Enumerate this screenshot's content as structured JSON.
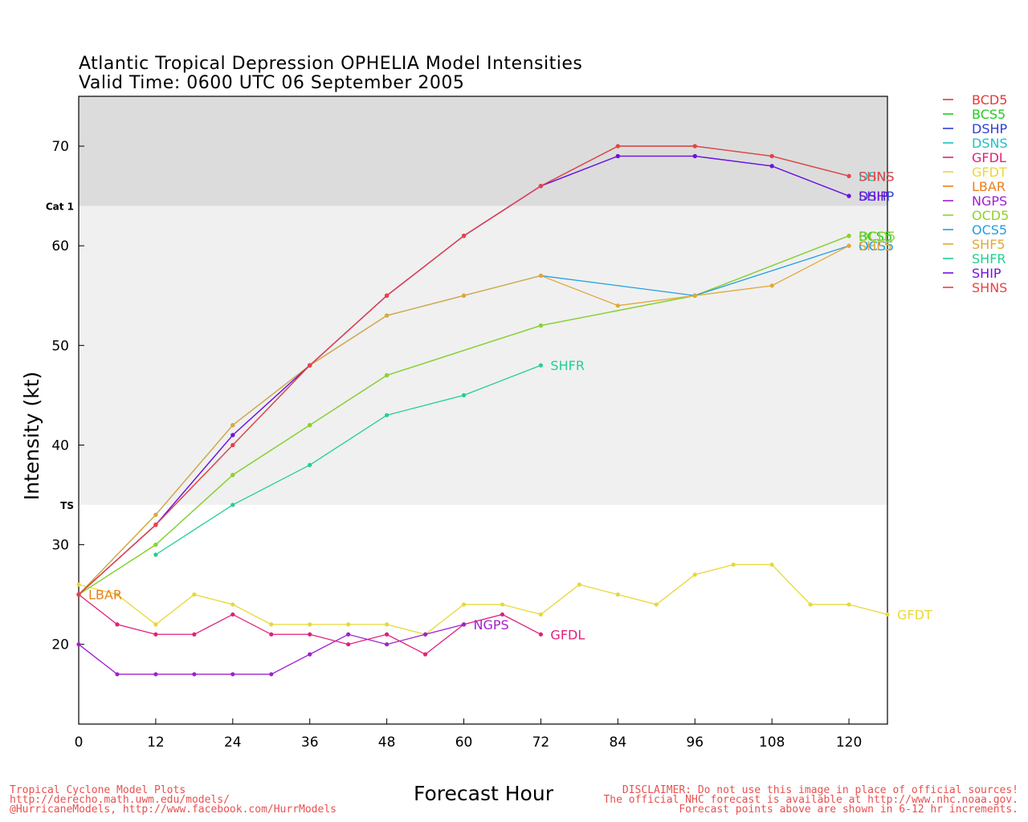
{
  "chart_data": {
    "type": "line",
    "title": "Atlantic Tropical Depression OPHELIA Model Intensities",
    "subtitle": "Valid Time: 0600 UTC 06 September 2005",
    "xlabel": "Forecast Hour",
    "ylabel": "Intensity (kt)",
    "xlim": [
      0,
      126
    ],
    "ylim": [
      12,
      75
    ],
    "xticks": [
      0,
      12,
      24,
      36,
      48,
      60,
      72,
      84,
      96,
      108,
      120
    ],
    "yticks": [
      20,
      30,
      40,
      50,
      60,
      70
    ],
    "bands": [
      {
        "label": "",
        "from": 64,
        "to": 75,
        "color": "#dcdcdc"
      },
      {
        "label": "Cat 1",
        "from": 34,
        "to": 64,
        "color": "#f0f0f0"
      },
      {
        "label": "TS",
        "from": 12,
        "to": 34,
        "color": "#ffffff"
      }
    ],
    "legend_position": "right",
    "series": [
      {
        "name": "BCD5",
        "color": "#e83838",
        "x": [
          0,
          12,
          24,
          36,
          48,
          60,
          72,
          84,
          96,
          108,
          120
        ],
        "y": [
          25,
          32,
          40,
          48,
          55,
          61,
          66,
          70,
          70,
          69,
          67
        ],
        "end_label": ""
      },
      {
        "name": "BCS5",
        "color": "#22cc22",
        "x": [
          0,
          12,
          24,
          36,
          48,
          72,
          96,
          120
        ],
        "y": [
          25,
          30,
          37,
          42,
          47,
          52,
          55,
          61
        ],
        "end_label": "BCS5"
      },
      {
        "name": "DSHP",
        "color": "#3040d0",
        "x": [
          0,
          12,
          24,
          36,
          48,
          60,
          72,
          84,
          96,
          108,
          120
        ],
        "y": [
          25,
          32,
          41,
          48,
          55,
          61,
          66,
          69,
          69,
          68,
          65
        ],
        "end_label": "DSHP"
      },
      {
        "name": "DSNS",
        "color": "#20c0c0",
        "x": [
          0,
          12,
          24,
          36,
          48,
          60,
          72,
          84,
          96,
          108,
          120
        ],
        "y": [
          25,
          32,
          40,
          48,
          55,
          61,
          66,
          70,
          70,
          69,
          67
        ],
        "end_label": "DSNS"
      },
      {
        "name": "GFDL",
        "color": "#e0207a",
        "x": [
          0,
          6,
          12,
          18,
          24,
          30,
          36,
          42,
          48,
          54,
          60,
          66,
          72
        ],
        "y": [
          25,
          22,
          21,
          21,
          23,
          21,
          21,
          20,
          21,
          19,
          22,
          23,
          21
        ],
        "end_label": "GFDL"
      },
      {
        "name": "GFDT",
        "color": "#e8d838",
        "x": [
          0,
          6,
          12,
          18,
          24,
          30,
          36,
          42,
          48,
          54,
          60,
          66,
          72,
          78,
          84,
          90,
          96,
          102,
          108,
          114,
          120,
          126
        ],
        "y": [
          26,
          25,
          22,
          25,
          24,
          22,
          22,
          22,
          22,
          21,
          24,
          24,
          23,
          26,
          25,
          24,
          27,
          28,
          28,
          24,
          24,
          23
        ],
        "end_label": "GFDT"
      },
      {
        "name": "LBAR",
        "color": "#e88020",
        "x": [
          0
        ],
        "y": [
          25
        ],
        "end_label": "LBAR"
      },
      {
        "name": "NGPS",
        "color": "#a020d0",
        "x": [
          0,
          6,
          12,
          18,
          24,
          30,
          36,
          42,
          48,
          54,
          60
        ],
        "y": [
          20,
          17,
          17,
          17,
          17,
          17,
          19,
          21,
          20,
          21,
          22
        ],
        "end_label": "NGPS"
      },
      {
        "name": "OCD5",
        "color": "#90d030",
        "x": [
          0,
          12,
          24,
          36,
          48,
          72,
          96,
          120
        ],
        "y": [
          25,
          30,
          37,
          42,
          47,
          52,
          55,
          61
        ],
        "end_label": "OCD5"
      },
      {
        "name": "OCS5",
        "color": "#20a0e0",
        "x": [
          0,
          12,
          24,
          36,
          48,
          60,
          72,
          96,
          120
        ],
        "y": [
          25,
          33,
          42,
          48,
          53,
          55,
          57,
          55,
          60
        ],
        "end_label": "OCS5"
      },
      {
        "name": "SHF5",
        "color": "#e0a838",
        "x": [
          0,
          12,
          24,
          36,
          48,
          60,
          72,
          84,
          96,
          108,
          120
        ],
        "y": [
          25,
          33,
          42,
          48,
          53,
          55,
          57,
          54,
          55,
          56,
          60
        ],
        "end_label": "SHF5"
      },
      {
        "name": "SHFR",
        "color": "#20d090",
        "x": [
          12,
          24,
          36,
          48,
          60,
          72
        ],
        "y": [
          29,
          34,
          38,
          43,
          45,
          48
        ],
        "end_label": "SHFR"
      },
      {
        "name": "SHIP",
        "color": "#7010e0",
        "x": [
          0,
          12,
          24,
          36,
          48,
          60,
          72,
          84,
          96,
          108,
          120
        ],
        "y": [
          25,
          32,
          41,
          48,
          55,
          61,
          66,
          69,
          69,
          68,
          65
        ],
        "end_label": "SHIP"
      },
      {
        "name": "SHNS",
        "color": "#f04040",
        "x": [
          0,
          12,
          24,
          36,
          48,
          60,
          72,
          84,
          96,
          108,
          120
        ],
        "y": [
          25,
          32,
          40,
          48,
          55,
          61,
          66,
          70,
          70,
          69,
          67
        ],
        "end_label": "SHNS"
      }
    ]
  },
  "footer": {
    "left_1": "Tropical Cyclone Model Plots",
    "left_2": "http://derecho.math.uwm.edu/models/",
    "left_3": "@HurricaneModels, http://www.facebook.com/HurrModels",
    "right_1": "DISCLAIMER: Do not use this image in place of official sources!",
    "right_2": "The official NHC forecast is available at http://www.nhc.noaa.gov.",
    "right_3": "Forecast points above are shown in 6-12 hr increments."
  }
}
